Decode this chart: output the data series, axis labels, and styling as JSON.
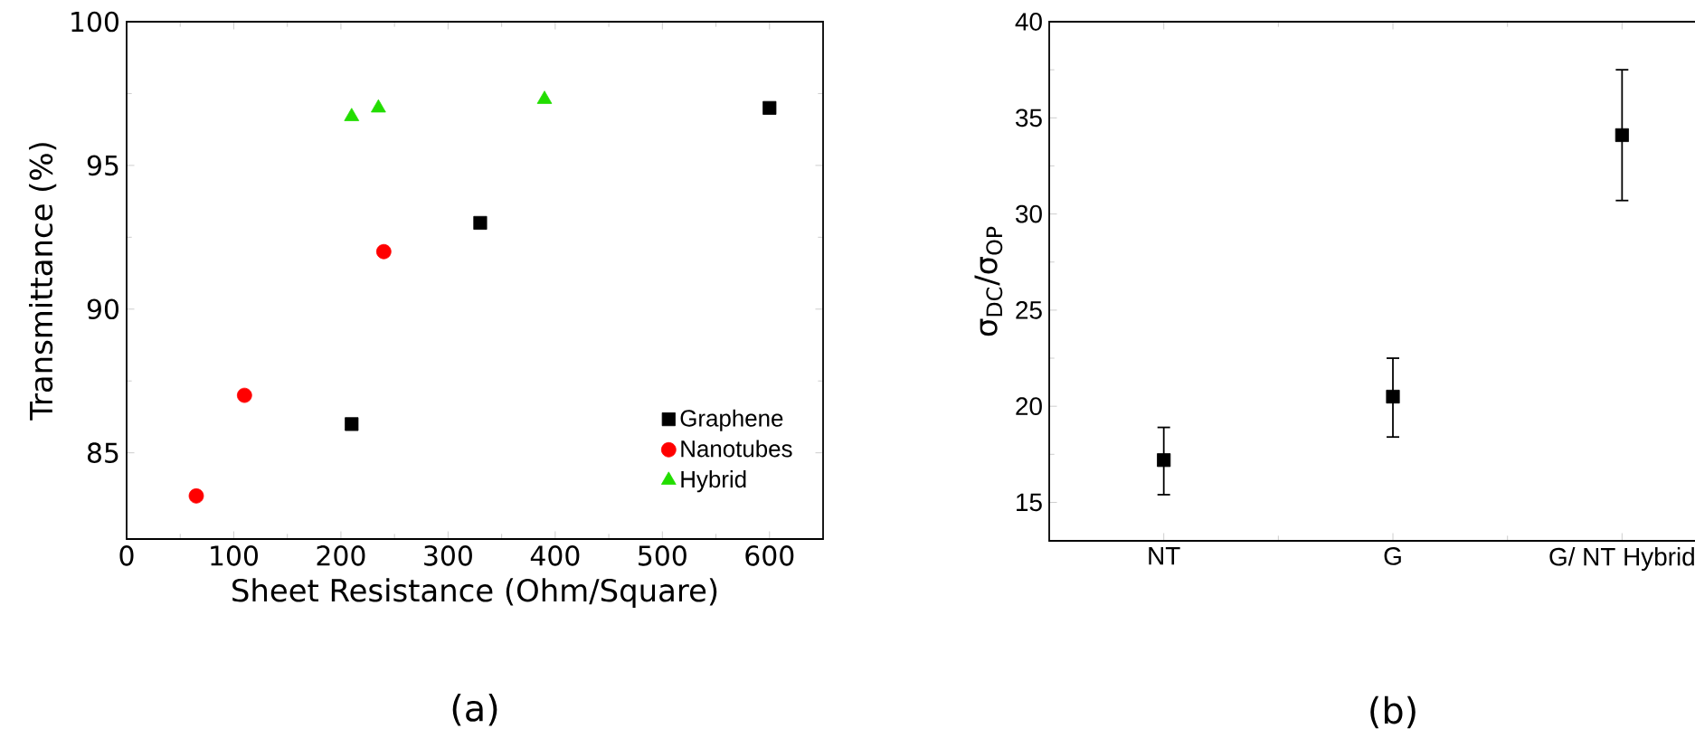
{
  "chart_data": [
    {
      "type": "scatter",
      "xlabel": "Sheet Resistance (Ohm/Square)",
      "ylabel": "Transmittance (%)",
      "xlim": [
        0,
        650
      ],
      "ylim": [
        82,
        100
      ],
      "xticks": [
        0,
        100,
        200,
        300,
        400,
        500,
        600
      ],
      "yticks": [
        85,
        90,
        95,
        100
      ],
      "legend": "bottom right",
      "annotations": [
        "(a)"
      ],
      "series": [
        {
          "name": "Graphene",
          "color": "#000000",
          "marker": "square",
          "x": [
            210,
            330,
            600
          ],
          "values": [
            86,
            93,
            97
          ]
        },
        {
          "name": "Nanotubes",
          "color": "#ff0000",
          "marker": "circle",
          "x": [
            65,
            110,
            240
          ],
          "values": [
            83.5,
            87,
            92
          ]
        },
        {
          "name": "Hybrid",
          "color": "#22dd00",
          "marker": "triangle",
          "x": [
            210,
            235,
            390
          ],
          "values": [
            96.7,
            97,
            97.3
          ]
        }
      ]
    },
    {
      "type": "scatter",
      "ylabel": "σ$_{DC}$/σ$_{OP}$",
      "categories": [
        "NT",
        "G",
        "G/ NT Hybrid"
      ],
      "ylim": [
        13,
        40
      ],
      "yticks": [
        15,
        20,
        25,
        30,
        35,
        40
      ],
      "marker": "square",
      "annotations": [
        "(b)"
      ],
      "series": [
        {
          "color": "#000000",
          "values": [
            17.2,
            20.5,
            34.1
          ],
          "errors": [
            [
              15.4,
              18.9
            ],
            [
              18.4,
              22.5
            ],
            [
              30.7,
              37.5
            ]
          ]
        }
      ]
    }
  ]
}
